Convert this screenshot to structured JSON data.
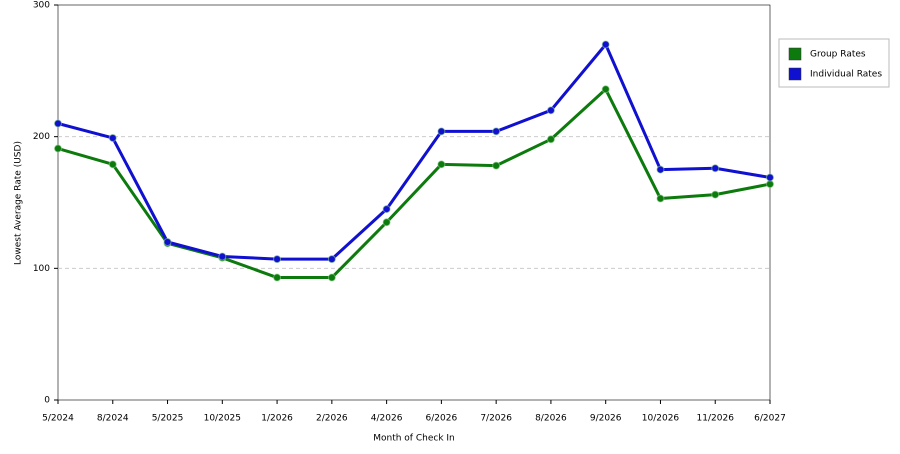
{
  "chart_data": {
    "type": "line",
    "x_label": "Month of Check In",
    "y_label": "Lowest Average Rate (USD)",
    "categories": [
      "5/2024",
      "8/2024",
      "5/2025",
      "10/2025",
      "1/2026",
      "2/2026",
      "4/2026",
      "6/2026",
      "7/2026",
      "8/2026",
      "9/2026",
      "10/2026",
      "11/2026",
      "6/2027"
    ],
    "series": [
      {
        "name": "Group Rates",
        "color": "#0d7a0d",
        "values": [
          191,
          179,
          119,
          108,
          93,
          93,
          135,
          179,
          178,
          198,
          236,
          153,
          156,
          164
        ]
      },
      {
        "name": "Individual Rates",
        "color": "#1010d0",
        "values": [
          210,
          199,
          120,
          109,
          107,
          107,
          145,
          204,
          204,
          220,
          270,
          175,
          176,
          169
        ]
      }
    ],
    "ylim": [
      0,
      300
    ],
    "yticks": [
      0,
      100,
      200,
      300
    ],
    "grid": true,
    "legend": "right"
  }
}
